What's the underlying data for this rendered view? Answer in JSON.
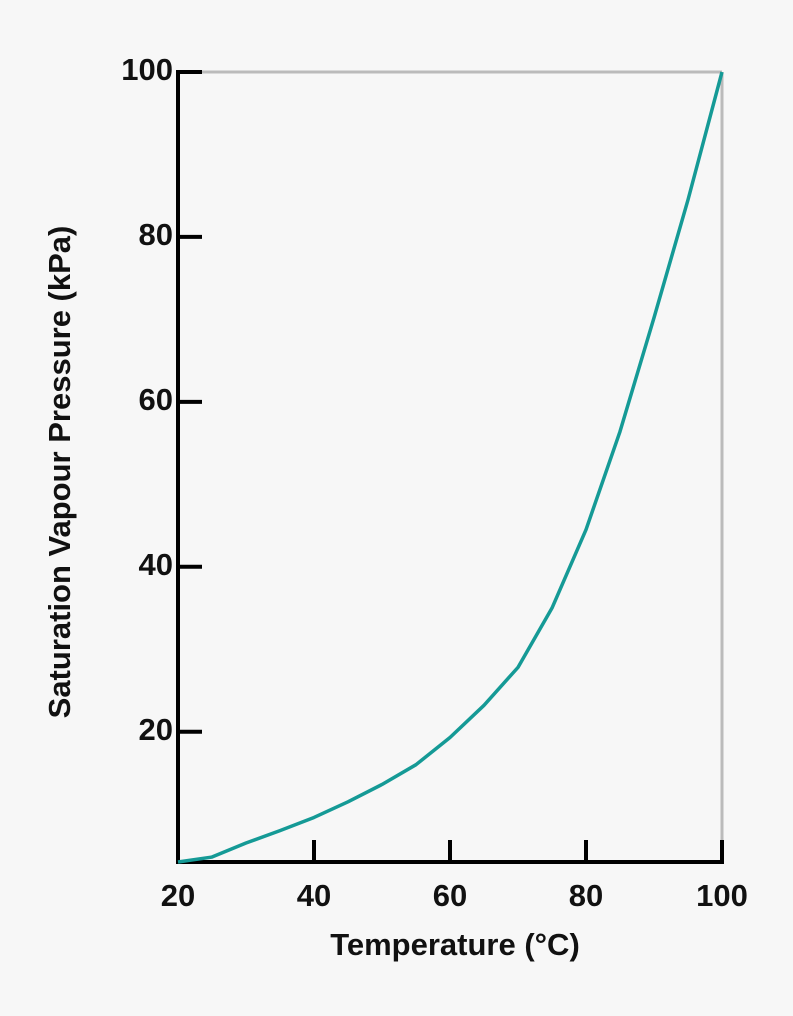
{
  "chart_data": {
    "type": "line",
    "x_label": "Temperature (°C)",
    "y_label": "Saturation Vapour Pressure (kPa)",
    "x": [
      20,
      25,
      30,
      35,
      40,
      45,
      50,
      55,
      60,
      65,
      70,
      75,
      80,
      85,
      90,
      95,
      100
    ],
    "series": [
      {
        "name": "Saturation vapour pressure",
        "color": "#159a96",
        "values": [
          4.2,
          4.8,
          6.5,
          8.0,
          9.6,
          11.5,
          13.6,
          16.0,
          19.3,
          23.2,
          27.8,
          35.0,
          44.5,
          56.4,
          70.2,
          84.5,
          100
        ]
      }
    ],
    "xlim": [
      20,
      100
    ],
    "xticks": [
      20,
      40,
      60,
      80,
      100
    ],
    "ylim": [
      4.2,
      100
    ],
    "yticks": [
      20,
      40,
      60,
      80,
      100
    ]
  }
}
